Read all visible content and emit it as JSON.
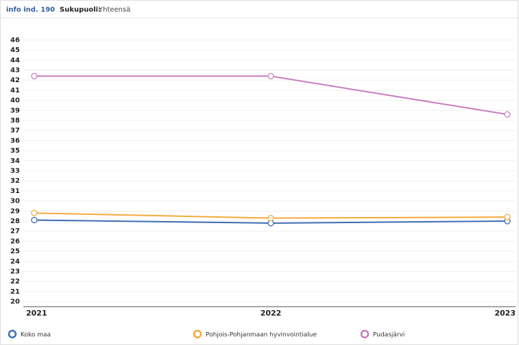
{
  "chart_data": {
    "type": "line",
    "title": "info ind. 190",
    "filter_label": "Sukupuoli:",
    "filter_value": "Yhteensä",
    "categories": [
      "2021",
      "2022",
      "2023"
    ],
    "series": [
      {
        "name": "Koko maa",
        "color": "#3d6cb3",
        "values": [
          28.1,
          27.8,
          28.0
        ]
      },
      {
        "name": "Pohjois-Pohjanmaan hyvinvointialue",
        "color": "#f2a93b",
        "values": [
          28.8,
          28.3,
          28.4
        ]
      },
      {
        "name": "Pudasjärvi",
        "color": "#c97dbb",
        "values": [
          42.4,
          42.4,
          38.6
        ]
      }
    ],
    "ylim": [
      19.5,
      46.5
    ],
    "yticks": [
      20,
      21,
      22,
      23,
      24,
      25,
      26,
      27,
      28,
      29,
      30,
      31,
      32,
      33,
      34,
      35,
      36,
      37,
      38,
      39,
      40,
      41,
      42,
      43,
      44,
      45,
      46
    ],
    "grid": true,
    "legend": "bottom"
  }
}
